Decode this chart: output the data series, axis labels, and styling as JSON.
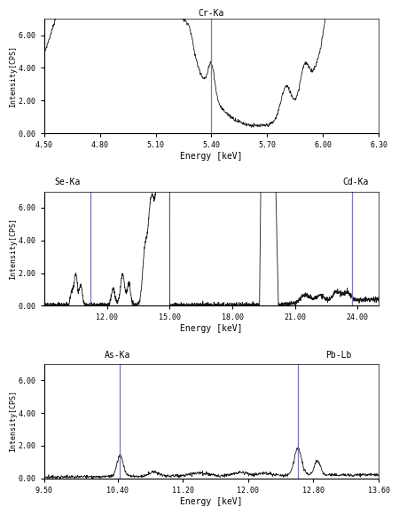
{
  "panel1": {
    "title": "Cr-Ka",
    "xlabel": "Energy [keV]",
    "ylabel": "Intensity[CPS]",
    "xlim": [
      4.5,
      6.3
    ],
    "ylim": [
      0.0,
      7.0
    ],
    "yticks": [
      0.0,
      2.0,
      4.0,
      6.0
    ],
    "xticks": [
      4.5,
      4.8,
      5.1,
      5.4,
      5.7,
      6.0,
      6.3
    ],
    "vlines": [
      5.4
    ],
    "vline_color": "#7777bb"
  },
  "panel2": {
    "title_left": "Se-Ka",
    "title_right": "Cd-Ka",
    "xlabel": "Energy [keV]",
    "ylabel": "Intensity[CPS]",
    "xlim": [
      9.0,
      25.0
    ],
    "ylim": [
      0.0,
      7.0
    ],
    "yticks": [
      0.0,
      2.0,
      4.0,
      6.0
    ],
    "xticks": [
      12.0,
      15.0,
      18.0,
      21.0,
      24.0
    ],
    "vlines": [
      11.22,
      23.73
    ],
    "vline_color": "#7777bb"
  },
  "panel3": {
    "title_left": "As-Ka",
    "title_right": "Pb-Lb",
    "xlabel": "Energy [keV]",
    "ylabel": "Intensity[CPS]",
    "xlim": [
      9.5,
      13.6
    ],
    "ylim": [
      0.0,
      7.0
    ],
    "yticks": [
      0.0,
      2.0,
      4.0,
      6.0
    ],
    "xticks": [
      9.5,
      10.4,
      11.2,
      12.0,
      12.8,
      13.6
    ],
    "vlines": [
      10.43,
      12.61
    ],
    "vline_color": "#7777bb"
  },
  "line_color": "#1a1a1a",
  "bg_color": "#ffffff"
}
